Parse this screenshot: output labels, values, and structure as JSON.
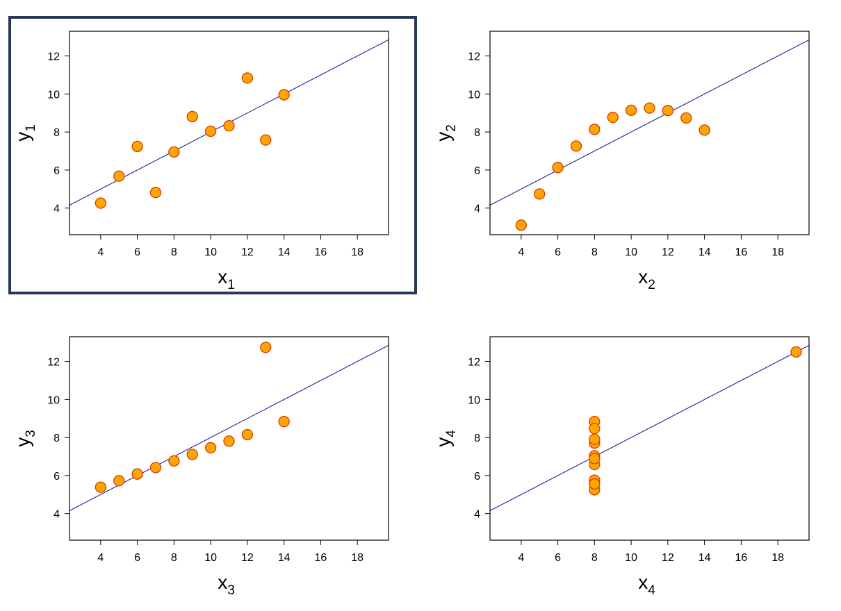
{
  "highlight_color": "#253858",
  "colors": {
    "point_fill": "#FFA500",
    "point_stroke": "#D93A00",
    "line": "#1E1EA0",
    "frame": "#000000"
  },
  "chart_data": [
    {
      "type": "scatter",
      "xlabel": {
        "base": "x",
        "sub": "1"
      },
      "ylabel": {
        "base": "y",
        "sub": "1"
      },
      "xlim": [
        2.3,
        19.7
      ],
      "ylim": [
        2.6,
        13.3
      ],
      "xticks": [
        4,
        6,
        8,
        10,
        12,
        14,
        16,
        18
      ],
      "yticks": [
        4,
        6,
        8,
        10,
        12
      ],
      "regression": {
        "intercept": 3.0,
        "slope": 0.5
      },
      "highlighted": true,
      "points": [
        [
          10,
          8.04
        ],
        [
          8,
          6.95
        ],
        [
          13,
          7.58
        ],
        [
          9,
          8.81
        ],
        [
          11,
          8.33
        ],
        [
          14,
          9.96
        ],
        [
          6,
          7.24
        ],
        [
          4,
          4.26
        ],
        [
          12,
          10.84
        ],
        [
          7,
          4.82
        ],
        [
          5,
          5.68
        ]
      ]
    },
    {
      "type": "scatter",
      "xlabel": {
        "base": "x",
        "sub": "2"
      },
      "ylabel": {
        "base": "y",
        "sub": "2"
      },
      "xlim": [
        2.3,
        19.7
      ],
      "ylim": [
        2.6,
        13.3
      ],
      "xticks": [
        4,
        6,
        8,
        10,
        12,
        14,
        16,
        18
      ],
      "yticks": [
        4,
        6,
        8,
        10,
        12
      ],
      "regression": {
        "intercept": 3.0,
        "slope": 0.5
      },
      "highlighted": false,
      "points": [
        [
          10,
          9.14
        ],
        [
          8,
          8.14
        ],
        [
          13,
          8.74
        ],
        [
          9,
          8.77
        ],
        [
          11,
          9.26
        ],
        [
          14,
          8.1
        ],
        [
          6,
          6.13
        ],
        [
          4,
          3.1
        ],
        [
          12,
          9.13
        ],
        [
          7,
          7.26
        ],
        [
          5,
          4.74
        ]
      ]
    },
    {
      "type": "scatter",
      "xlabel": {
        "base": "x",
        "sub": "3"
      },
      "ylabel": {
        "base": "y",
        "sub": "3"
      },
      "xlim": [
        2.3,
        19.7
      ],
      "ylim": [
        2.6,
        13.3
      ],
      "xticks": [
        4,
        6,
        8,
        10,
        12,
        14,
        16,
        18
      ],
      "yticks": [
        4,
        6,
        8,
        10,
        12
      ],
      "regression": {
        "intercept": 3.0,
        "slope": 0.5
      },
      "highlighted": false,
      "points": [
        [
          10,
          7.46
        ],
        [
          8,
          6.77
        ],
        [
          13,
          12.74
        ],
        [
          9,
          7.11
        ],
        [
          11,
          7.81
        ],
        [
          14,
          8.84
        ],
        [
          6,
          6.08
        ],
        [
          4,
          5.39
        ],
        [
          12,
          8.15
        ],
        [
          7,
          6.42
        ],
        [
          5,
          5.73
        ]
      ]
    },
    {
      "type": "scatter",
      "xlabel": {
        "base": "x",
        "sub": "4"
      },
      "ylabel": {
        "base": "y",
        "sub": "4"
      },
      "xlim": [
        2.3,
        19.7
      ],
      "ylim": [
        2.6,
        13.3
      ],
      "xticks": [
        4,
        6,
        8,
        10,
        12,
        14,
        16,
        18
      ],
      "yticks": [
        4,
        6,
        8,
        10,
        12
      ],
      "regression": {
        "intercept": 3.0,
        "slope": 0.5
      },
      "highlighted": false,
      "points": [
        [
          8,
          6.58
        ],
        [
          8,
          5.76
        ],
        [
          8,
          7.71
        ],
        [
          8,
          8.84
        ],
        [
          8,
          8.47
        ],
        [
          8,
          7.04
        ],
        [
          8,
          5.25
        ],
        [
          19,
          12.5
        ],
        [
          8,
          5.56
        ],
        [
          8,
          7.91
        ],
        [
          8,
          6.89
        ]
      ]
    }
  ]
}
